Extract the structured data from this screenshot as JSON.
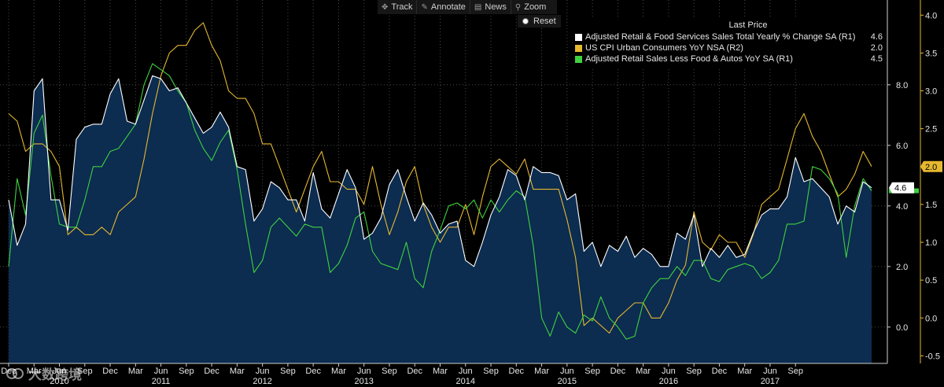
{
  "toolbar": {
    "track": "Track",
    "annotate": "Annotate",
    "news": "News",
    "zoom": "Zoom",
    "reset": "Reset"
  },
  "legend": {
    "header": "Last Price",
    "items": [
      {
        "label": "Adjusted Retail & Food Services Sales Total Yearly % Change SA  (R1)",
        "value": "4.6",
        "color": "#ffffff"
      },
      {
        "label": "US CPI Urban Consumers YoY NSA  (R2)",
        "value": "2.0",
        "color": "#e6b830"
      },
      {
        "label": "Adjusted Retail Sales Less Food & Autos YoY SA  (R1)",
        "value": "4.5",
        "color": "#3fd23f"
      }
    ]
  },
  "watermark": "大数跨境",
  "colors": {
    "background": "#000000",
    "area_fill": "#0c2c50",
    "grid": "#4a4a4a",
    "axis_right": "#e6b830",
    "retail": "#ffffff",
    "cpi": "#e6b830",
    "retail_ex": "#3fd23f",
    "tag_cpi_bg": "#e6b830",
    "tag_retail_bg": "#ffffff",
    "tag_retail_ex_bg": "#3fd23f"
  },
  "chart_data": {
    "type": "line",
    "title": "",
    "x_start": "Dec 2009",
    "x_end": "Oct 2017",
    "frequency": "monthly",
    "axes": {
      "R1": {
        "ylim": [
          -1.2,
          10.8
        ],
        "ticks": [
          0.0,
          2.0,
          4.0,
          6.0,
          8.0
        ],
        "tick_labels": [
          "0.0",
          "2.0",
          "4.0",
          "6.0",
          "8.0"
        ]
      },
      "R2": {
        "ylim": [
          -0.6,
          4.2
        ],
        "ticks": [
          -0.5,
          0.0,
          0.5,
          1.0,
          1.5,
          2.0,
          2.5,
          3.0,
          3.5,
          4.0
        ],
        "tick_labels": [
          "-0.5",
          "0.0",
          "0.5",
          "1.0",
          "1.5",
          "2.0",
          "2.5",
          "3.0",
          "3.5",
          "4.0"
        ]
      }
    },
    "x_tick_labels": [
      "Dec",
      "Mar",
      "Jun",
      "Sep",
      "Dec",
      "Mar",
      "Jun",
      "Sep",
      "Dec",
      "Mar",
      "Jun",
      "Sep",
      "Dec",
      "Mar",
      "Jun",
      "Sep",
      "Dec",
      "Mar",
      "Jun",
      "Sep",
      "Dec",
      "Mar",
      "Jun",
      "Sep",
      "Dec",
      "Mar",
      "Jun",
      "Sep",
      "Dec",
      "Mar",
      "Jun",
      "Sep"
    ],
    "year_labels": [
      "2010",
      "2011",
      "2012",
      "2013",
      "2014",
      "2015",
      "2016",
      "2017"
    ],
    "series": [
      {
        "name": "Adjusted Retail & Food Services Sales Total Yearly % Change SA",
        "axis": "R1",
        "fill": true,
        "color": "#ffffff",
        "values": [
          4.2,
          2.7,
          3.4,
          7.8,
          8.2,
          4.2,
          4.2,
          3.2,
          6.2,
          6.6,
          6.7,
          6.7,
          7.7,
          8.2,
          6.8,
          6.7,
          7.5,
          8.3,
          8.2,
          7.8,
          7.9,
          7.4,
          6.9,
          6.4,
          6.6,
          7.1,
          6.6,
          5.3,
          5.2,
          3.5,
          3.9,
          4.8,
          4.6,
          4.2,
          4.2,
          3.5,
          5.1,
          3.9,
          3.6,
          4.4,
          5.2,
          4.6,
          2.9,
          3.1,
          3.6,
          4.7,
          5.2,
          4.3,
          3.5,
          4.1,
          3.7,
          3.1,
          3.4,
          3.5,
          2.2,
          2.0,
          2.8,
          3.7,
          4.3,
          5.2,
          5.0,
          4.2,
          5.3,
          5.1,
          5.1,
          5.0,
          4.2,
          4.4,
          2.5,
          2.8,
          2.0,
          2.7,
          2.5,
          3.0,
          2.3,
          2.6,
          2.4,
          2.0,
          2.0,
          3.1,
          2.9,
          3.7,
          2.0,
          2.6,
          2.3,
          2.7,
          2.3,
          2.4,
          3.1,
          3.7,
          3.9,
          3.9,
          4.3,
          5.6,
          4.8,
          4.9,
          4.6,
          4.3,
          3.4,
          4.0,
          3.8,
          4.8,
          4.6
        ]
      },
      {
        "name": "US CPI Urban Consumers YoY NSA",
        "axis": "R2",
        "fill": false,
        "color": "#e6b830",
        "values": [
          2.7,
          2.6,
          2.2,
          2.3,
          2.3,
          2.2,
          2.0,
          1.1,
          1.2,
          1.1,
          1.1,
          1.2,
          1.1,
          1.4,
          1.5,
          1.6,
          2.1,
          2.7,
          3.2,
          3.5,
          3.6,
          3.6,
          3.8,
          3.9,
          3.6,
          3.4,
          3.0,
          2.9,
          2.9,
          2.7,
          2.3,
          2.3,
          2.0,
          1.7,
          1.4,
          1.7,
          2.0,
          2.2,
          1.8,
          1.8,
          1.7,
          1.7,
          1.5,
          2.0,
          1.5,
          1.1,
          1.4,
          1.8,
          2.0,
          1.5,
          1.2,
          1.0,
          1.2,
          1.2,
          1.5,
          1.1,
          1.6,
          2.0,
          2.1,
          2.0,
          1.9,
          2.1,
          1.7,
          1.7,
          1.7,
          1.7,
          1.3,
          0.8,
          -0.1,
          0.0,
          -0.1,
          -0.2,
          0.0,
          0.1,
          0.2,
          0.2,
          0.0,
          0.0,
          0.2,
          0.5,
          0.7,
          1.4,
          1.0,
          0.9,
          1.1,
          1.0,
          1.0,
          0.8,
          1.1,
          1.5,
          1.6,
          1.7,
          2.1,
          2.5,
          2.7,
          2.4,
          2.2,
          1.9,
          1.6,
          1.7,
          1.9,
          2.2,
          2.0
        ]
      },
      {
        "name": "Adjusted Retail Sales Less Food & Autos YoY SA",
        "axis": "R1",
        "fill": false,
        "color": "#3fd23f",
        "values": [
          2.0,
          4.9,
          3.7,
          6.4,
          7.0,
          5.0,
          3.4,
          3.3,
          3.3,
          4.2,
          5.3,
          5.3,
          5.8,
          5.9,
          6.3,
          6.7,
          8.0,
          8.7,
          8.5,
          8.3,
          7.8,
          7.4,
          6.5,
          5.9,
          5.5,
          6.1,
          6.5,
          5.2,
          3.4,
          1.8,
          2.2,
          3.3,
          3.6,
          3.3,
          3.0,
          3.4,
          3.3,
          3.3,
          1.8,
          2.1,
          2.7,
          3.6,
          3.8,
          2.5,
          2.1,
          2.0,
          1.9,
          2.8,
          1.6,
          1.3,
          2.5,
          3.2,
          4.0,
          4.1,
          3.9,
          4.2,
          3.6,
          4.2,
          3.8,
          4.2,
          4.5,
          4.3,
          2.7,
          0.3,
          -0.3,
          0.5,
          0.0,
          -0.2,
          0.4,
          0.2,
          1.0,
          0.3,
          0.0,
          -0.4,
          -0.3,
          0.8,
          1.3,
          1.6,
          1.6,
          2.0,
          1.7,
          2.2,
          2.2,
          1.6,
          1.5,
          1.9,
          2.0,
          2.1,
          2.0,
          1.6,
          1.8,
          2.2,
          3.4,
          3.4,
          3.5,
          5.3,
          5.2,
          4.9,
          4.4,
          2.3,
          4.0,
          4.9,
          4.5
        ]
      }
    ],
    "last_price_tags": [
      {
        "series": "Adjusted Retail & Food Services Sales Total Yearly % Change SA",
        "value": 4.6,
        "label": "4.6",
        "axis": "R1"
      },
      {
        "series": "US CPI Urban Consumers YoY NSA",
        "value": 2.0,
        "label": "2.0",
        "axis": "R2"
      },
      {
        "series": "Adjusted Retail Sales Less Food & Autos YoY SA",
        "value": 4.5,
        "label": "",
        "axis": "R1"
      }
    ],
    "grid": true,
    "legend_position": "top-right"
  }
}
